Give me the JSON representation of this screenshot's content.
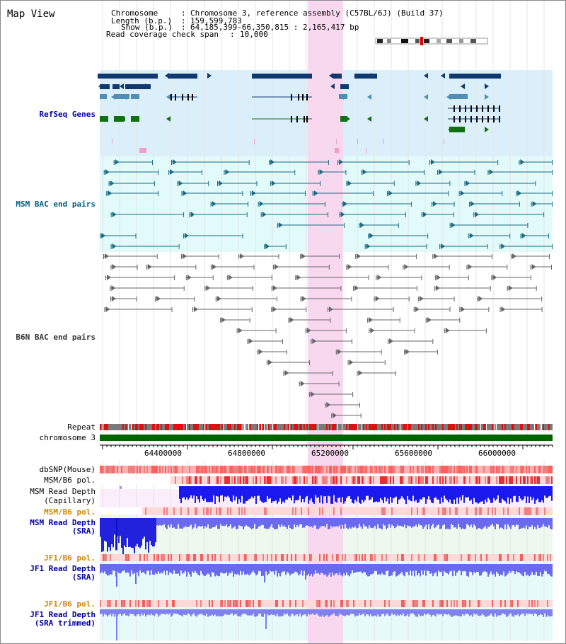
{
  "page_title": "Map View",
  "header": {
    "chromosome_label": "Chromosome",
    "chromosome_value": "Chromosome 3, reference assembly (C57BL/6J) (Build 37)",
    "length_label": "Length (b.p.)",
    "length_value": "159,599,783",
    "show_label": "Show (b.p.)",
    "show_value": "64,185,399-66,350,815 : 2,165,417 bp",
    "coverage_label": "Read coverage check span",
    "coverage_value": "10,000"
  },
  "tracks": {
    "refseq": "RefSeq Genes",
    "msm_bac": "MSM BAC end pairs",
    "b6n_bac": "B6N BAC end pairs",
    "repeat": "Repeat",
    "chromosome": "chromosome 3",
    "dbsnp": "dbSNP(Mouse)",
    "msm_b6_pol_1": "MSM/B6 pol.",
    "msm_read_depth_cap_1": "MSM Read Depth",
    "msm_read_depth_cap_2": "(Capillary)",
    "msm_b6_pol_2": "MSM/B6 pol.",
    "msm_read_depth_sra_1": "MSM Read Depth",
    "msm_read_depth_sra_2": "(SRA)",
    "jf1_b6_pol_1": "JF1/B6 pol.",
    "jf1_read_depth_1": "JF1 Read Depth",
    "jf1_read_depth_2": "(SRA)",
    "jf1_b6_pol_2": "JF1/B6 pol.",
    "jf1_read_depth_trim_1": "JF1 Read Depth",
    "jf1_read_depth_trim_2": "(SRA trimmed)"
  },
  "axis": {
    "ticks": [
      "64400000",
      "64800000",
      "65200000",
      "65600000",
      "66000000"
    ]
  },
  "colors": {
    "refseq_bg": "#dbeffa",
    "msm_bg": "#e2fafa",
    "highlight": "#f8d8ee",
    "gene_dark": "#103a6e",
    "gene_mid": "#4f8fb3",
    "gene_green": "#117011",
    "msm_bac": "#1b6b84",
    "b6n_bac": "#666666",
    "chromosome_bar": "#006400",
    "depth_blue": "#2020e0",
    "depth_light_blue": "#6a6af0",
    "pol_red": "#e83030",
    "pol_pink": "#ffd0d0"
  }
}
